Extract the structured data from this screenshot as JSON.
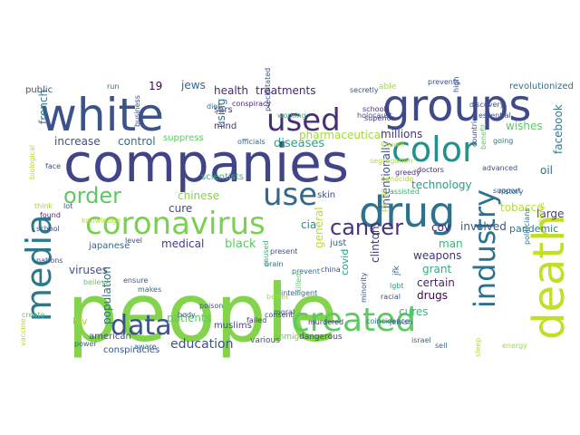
{
  "word_cloud": {
    "words": [
      {
        "text": "people",
        "color": "#84d44b"
      },
      {
        "text": "companies",
        "color": "#414487"
      },
      {
        "text": "white",
        "color": "#3b528b"
      },
      {
        "text": "groups",
        "color": "#3e4a89"
      },
      {
        "text": "media",
        "color": "#2a788e"
      },
      {
        "text": "drug",
        "color": "#2c728e"
      },
      {
        "text": "death",
        "color": "#c2df23"
      },
      {
        "text": "created",
        "color": "#5ec962"
      },
      {
        "text": "color",
        "color": "#21918c"
      },
      {
        "text": "coronavirus",
        "color": "#7ad151"
      },
      {
        "text": "used",
        "color": "#472d7b"
      },
      {
        "text": "use",
        "color": "#31688e"
      },
      {
        "text": "data",
        "color": "#3b528b"
      },
      {
        "text": "industry",
        "color": "#2c728e"
      },
      {
        "text": "cancer",
        "color": "#46327e"
      },
      {
        "text": "order",
        "color": "#5ec962"
      },
      {
        "text": "education",
        "color": "#3b528b"
      },
      {
        "text": "diseases",
        "color": "#22a884"
      },
      {
        "text": "pharmaceutical",
        "color": "#a0da39"
      },
      {
        "text": "technology",
        "color": "#1fa187"
      },
      {
        "text": "treatments",
        "color": "#482878"
      },
      {
        "text": "health",
        "color": "#472c7a"
      },
      {
        "text": "millions",
        "color": "#46327e"
      },
      {
        "text": "increase",
        "color": "#3b528b"
      },
      {
        "text": "control",
        "color": "#2c728e"
      },
      {
        "text": "patients",
        "color": "#5ec962"
      },
      {
        "text": "viruses",
        "color": "#3b528b"
      },
      {
        "text": "medical",
        "color": "#433e85"
      },
      {
        "text": "black",
        "color": "#5ec962"
      },
      {
        "text": "tobacco",
        "color": "#b5de2b"
      },
      {
        "text": "cure",
        "color": "#3e4a89"
      },
      {
        "text": "chinese",
        "color": "#86d549"
      },
      {
        "text": "weapons",
        "color": "#46327e"
      },
      {
        "text": "cures",
        "color": "#35b779"
      },
      {
        "text": "drugs",
        "color": "#440154"
      },
      {
        "text": "grant",
        "color": "#29af7f"
      },
      {
        "text": "certain",
        "color": "#481f71"
      },
      {
        "text": "involved",
        "color": "#3b528b"
      },
      {
        "text": "pandemic",
        "color": "#2a788e"
      },
      {
        "text": "large",
        "color": "#433e85"
      },
      {
        "text": "wishes",
        "color": "#5ec962"
      },
      {
        "text": "oil",
        "color": "#2c728e"
      },
      {
        "text": "facebook",
        "color": "#287d8e"
      },
      {
        "text": "clinton",
        "color": "#443983"
      },
      {
        "text": "covid",
        "color": "#20a386"
      },
      {
        "text": "general",
        "color": "#b5de2b"
      },
      {
        "text": "intentionally",
        "color": "#3b528b"
      },
      {
        "text": "population",
        "color": "#2c728e"
      },
      {
        "text": "hiv",
        "color": "#a5db36"
      },
      {
        "text": "american",
        "color": "#3e4a89"
      },
      {
        "text": "conspiracies",
        "color": "#39568c"
      },
      {
        "text": "french",
        "color": "#277f8e"
      },
      {
        "text": "public",
        "color": "#3b528b"
      },
      {
        "text": "19",
        "color": "#440154"
      },
      {
        "text": "jews",
        "color": "#31688e"
      },
      {
        "text": "sars",
        "color": "#443a83"
      },
      {
        "text": "mind",
        "color": "#453781"
      },
      {
        "text": "using",
        "color": "#2c728e"
      },
      {
        "text": "cia",
        "color": "#21918c"
      },
      {
        "text": "skin",
        "color": "#3b528b"
      },
      {
        "text": "just",
        "color": "#31688e"
      },
      {
        "text": "man",
        "color": "#35b779"
      },
      {
        "text": "cov",
        "color": "#482475"
      },
      {
        "text": "japanese",
        "color": "#31688e"
      },
      {
        "text": "muslims",
        "color": "#3e4a89"
      },
      {
        "text": "immigration",
        "color": "#6ece58"
      },
      {
        "text": "dangerous",
        "color": "#3e4a89"
      },
      {
        "text": "various",
        "color": "#3b528b"
      },
      {
        "text": "murdered",
        "color": "#46307e"
      },
      {
        "text": "coincidence",
        "color": "#2c728e"
      },
      {
        "text": "israel",
        "color": "#31688e"
      },
      {
        "text": "revolutionized",
        "color": "#2c728e"
      },
      {
        "text": "scientists",
        "color": "#35b779"
      },
      {
        "text": "suppress",
        "color": "#5ec962"
      },
      {
        "text": "business",
        "color": "#3b528b"
      },
      {
        "text": "conspiracy",
        "color": "#482878"
      },
      {
        "text": "schools",
        "color": "#46327e"
      },
      {
        "text": "superior",
        "color": "#453781"
      },
      {
        "text": "secretly",
        "color": "#3b528b"
      },
      {
        "text": "able",
        "color": "#a0da39"
      },
      {
        "text": "prevents",
        "color": "#3b528b"
      },
      {
        "text": "officials",
        "color": "#31688e"
      },
      {
        "text": "known",
        "color": "#b5de2b"
      },
      {
        "text": "purge",
        "color": "#b5de2b"
      },
      {
        "text": "jfk",
        "color": "#31688e"
      },
      {
        "text": "lgbt",
        "color": "#20a386"
      },
      {
        "text": "racial",
        "color": "#3b528b"
      },
      {
        "text": "minority",
        "color": "#3b528b"
      },
      {
        "text": "intelligent",
        "color": "#31688e"
      },
      {
        "text": "prevent",
        "color": "#2c728e"
      },
      {
        "text": "believe",
        "color": "#5ec962"
      },
      {
        "text": "body",
        "color": "#3b528b"
      },
      {
        "text": "consent",
        "color": "#3e4a89"
      },
      {
        "text": "precipitated",
        "color": "#3b528b"
      },
      {
        "text": "run",
        "color": "#2c728e"
      },
      {
        "text": "think",
        "color": "#a0da39"
      },
      {
        "text": "lot",
        "color": "#3b528b"
      },
      {
        "text": "jewish",
        "color": "#31688e"
      },
      {
        "text": "sell",
        "color": "#31688e"
      },
      {
        "text": "holocaust",
        "color": "#3b528b"
      },
      {
        "text": "history",
        "color": "#2c728e"
      },
      {
        "text": "assisted",
        "color": "#35b779"
      },
      {
        "text": "genocide",
        "color": "#b5de2b"
      },
      {
        "text": "doctors",
        "color": "#482878"
      },
      {
        "text": "greedy",
        "color": "#46327e"
      },
      {
        "text": "moral",
        "color": "#3b528b"
      },
      {
        "text": "failed",
        "color": "#453781"
      },
      {
        "text": "power",
        "color": "#31688e"
      },
      {
        "text": "school",
        "color": "#3b528b"
      },
      {
        "text": "level",
        "color": "#3e4a89"
      },
      {
        "text": "killed",
        "color": "#5ec962"
      },
      {
        "text": "sleep",
        "color": "#b5de2b"
      },
      {
        "text": "energy",
        "color": "#a0da39"
      },
      {
        "text": "diet",
        "color": "#2c728e"
      },
      {
        "text": "aware",
        "color": "#31688e"
      },
      {
        "text": "ensure",
        "color": "#3b528b"
      },
      {
        "text": "essential",
        "color": "#3b528b"
      },
      {
        "text": "working",
        "color": "#35b779"
      },
      {
        "text": "support",
        "color": "#3b528b"
      },
      {
        "text": "high",
        "color": "#3b528b"
      },
      {
        "text": "going",
        "color": "#2c728e"
      },
      {
        "text": "things",
        "color": "#b5de2b"
      },
      {
        "text": "countries",
        "color": "#3b528b"
      },
      {
        "text": "politicians",
        "color": "#2c728e"
      },
      {
        "text": "benefit",
        "color": "#5ec962"
      },
      {
        "text": "biological",
        "color": "#b5de2b"
      },
      {
        "text": "found",
        "color": "#482878"
      },
      {
        "text": "face",
        "color": "#3b528b"
      },
      {
        "text": "knowledge",
        "color": "#b5de2b"
      },
      {
        "text": "poison",
        "color": "#3b528b"
      },
      {
        "text": "better",
        "color": "#a0da39"
      },
      {
        "text": "china",
        "color": "#3b528b"
      },
      {
        "text": "brain",
        "color": "#2c728e"
      },
      {
        "text": "present",
        "color": "#3b528b"
      },
      {
        "text": "caused",
        "color": "#35b779"
      },
      {
        "text": "discovery",
        "color": "#3b528b"
      },
      {
        "text": "vaccine",
        "color": "#b5de2b"
      },
      {
        "text": "create",
        "color": "#5ec962"
      },
      {
        "text": "makes",
        "color": "#31688e"
      },
      {
        "text": "nations",
        "color": "#3b528b"
      },
      {
        "text": "segregation",
        "color": "#b5de2b"
      },
      {
        "text": "advanced",
        "color": "#3b528b"
      },
      {
        "text": "research",
        "color": "#2c728e"
      },
      {
        "text": "effects",
        "color": "#5ec962"
      },
      {
        "text": "trafficking",
        "color": "#3b528b"
      },
      {
        "text": "future",
        "color": "#31688e"
      }
    ]
  }
}
